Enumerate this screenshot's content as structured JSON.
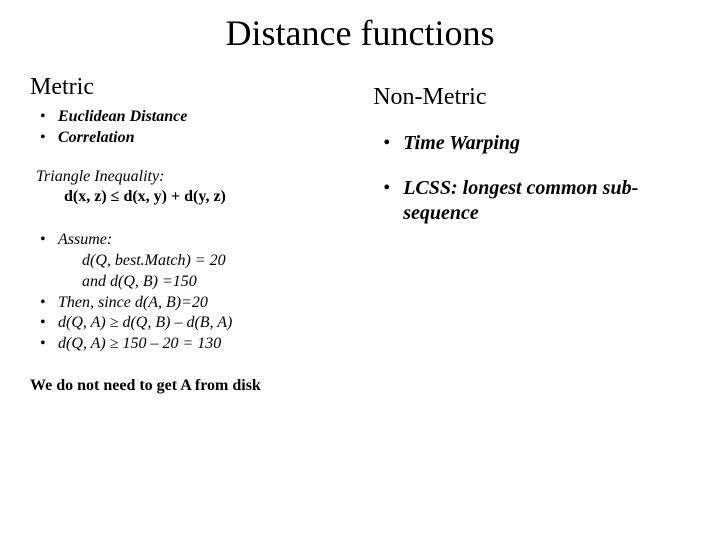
{
  "title": "Distance functions",
  "left": {
    "heading": "Metric",
    "items": [
      "Euclidean Distance",
      "Correlation"
    ],
    "inequality_title": "Triangle Inequality:",
    "inequality_formula": "d(x, z) ≤ d(x, y) + d(y, z)",
    "assume": {
      "lead": "Assume:",
      "line1": "d(Q, best.Match) = 20",
      "line2": "and d(Q, B) =150"
    },
    "then": "Then, since d(A, B)=20",
    "step1": "d(Q, A) ≥ d(Q, B) – d(B, A)",
    "step2": "d(Q, A) ≥ 150 – 20 = 130",
    "footer": "We do not need to get A from disk"
  },
  "right": {
    "heading": "Non-Metric",
    "item1": "Time Warping",
    "item2": " LCSS: longest common sub-sequence"
  },
  "colors": {
    "background": "#ffffff",
    "text": "#000000"
  },
  "typography": {
    "title_fontsize": 36,
    "heading_fontsize": 24,
    "body_fontsize": 16,
    "right_list_fontsize": 20,
    "font_family": "Times New Roman"
  }
}
